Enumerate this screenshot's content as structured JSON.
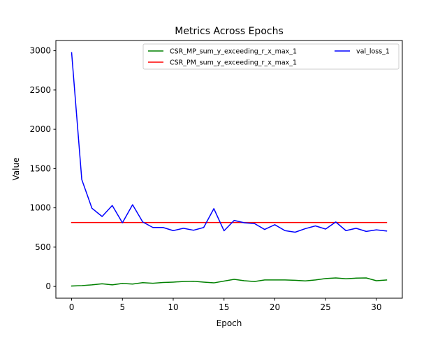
{
  "chart_data": {
    "type": "line",
    "title": "Metrics Across Epochs",
    "xlabel": "Epoch",
    "ylabel": "Value",
    "xlim": [
      -1.55,
      32.55
    ],
    "ylim": [
      -150,
      3130
    ],
    "xticks": [
      0,
      5,
      10,
      15,
      20,
      25,
      30
    ],
    "yticks": [
      0,
      500,
      1000,
      1500,
      2000,
      2500,
      3000
    ],
    "grid": false,
    "legend_position": "top-right",
    "x": [
      0,
      1,
      2,
      3,
      4,
      5,
      6,
      7,
      8,
      9,
      10,
      11,
      12,
      13,
      14,
      15,
      16,
      17,
      18,
      19,
      20,
      21,
      22,
      23,
      24,
      25,
      26,
      27,
      28,
      29,
      30,
      31
    ],
    "series": [
      {
        "name": "CSR_MP_sum_y_exceeding_r_x_max_1",
        "color": "#008000",
        "values": [
          5,
          10,
          20,
          33,
          20,
          38,
          30,
          48,
          40,
          50,
          55,
          62,
          65,
          55,
          45,
          68,
          90,
          72,
          62,
          82,
          82,
          82,
          78,
          70,
          82,
          100,
          108,
          98,
          105,
          108,
          72,
          82
        ]
      },
      {
        "name": "CSR_PM_sum_y_exceeding_r_x_max_1",
        "color": "#ff0000",
        "values": [
          813,
          813,
          813,
          813,
          813,
          813,
          813,
          813,
          813,
          813,
          813,
          813,
          813,
          813,
          813,
          813,
          813,
          813,
          813,
          813,
          813,
          813,
          813,
          813,
          813,
          813,
          813,
          813,
          813,
          813,
          813,
          813
        ]
      },
      {
        "name": "val_loss_1",
        "color": "#0000ff",
        "values": [
          2975,
          1360,
          995,
          890,
          1030,
          810,
          1040,
          820,
          750,
          750,
          710,
          740,
          715,
          750,
          990,
          708,
          840,
          810,
          800,
          725,
          785,
          710,
          690,
          735,
          770,
          730,
          820,
          710,
          740,
          700,
          720,
          705
        ]
      }
    ]
  }
}
